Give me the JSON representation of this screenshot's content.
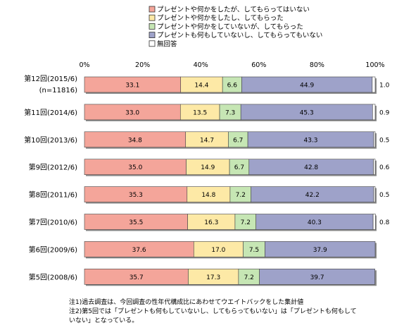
{
  "chart_data": {
    "type": "bar",
    "orientation": "horizontal",
    "stacked": true,
    "percent": true,
    "xlim": [
      0,
      100
    ],
    "x_ticks": [
      "0%",
      "20%",
      "40%",
      "60%",
      "80%",
      "100%"
    ],
    "categories": [
      {
        "line1": "第12回(2015/6)",
        "line2": "(n=11816)"
      },
      {
        "line1": "第11回(2014/6)",
        "line2": ""
      },
      {
        "line1": "第10回(2013/6)",
        "line2": ""
      },
      {
        "line1": "第9回(2012/6)",
        "line2": ""
      },
      {
        "line1": "第8回(2011/6)",
        "line2": ""
      },
      {
        "line1": "第7回(2010/6)",
        "line2": ""
      },
      {
        "line1": "第6回(2009/6)",
        "line2": ""
      },
      {
        "line1": "第5回(2008/6)",
        "line2": ""
      }
    ],
    "legend_position": "top-right",
    "series": [
      {
        "name": "プレゼントや何かをしたが、してもらってはいない",
        "color": "#f4a59a",
        "values": [
          33.1,
          33.0,
          34.8,
          35.0,
          35.3,
          35.5,
          37.6,
          35.7
        ],
        "labels": [
          "33.1",
          "33.0",
          "34.8",
          "35.0",
          "35.3",
          "35.5",
          "37.6",
          "35.7"
        ]
      },
      {
        "name": "プレゼントや何かをしたし、してもらった",
        "color": "#fde9a6",
        "values": [
          14.4,
          13.5,
          14.7,
          14.9,
          14.8,
          16.3,
          17.0,
          17.3
        ],
        "labels": [
          "14.4",
          "13.5",
          "14.7",
          "14.9",
          "14.8",
          "16.3",
          "17.0",
          "17.3"
        ]
      },
      {
        "name": "プレゼントや何かをしていないが、してもらった",
        "color": "#c6e6b4",
        "values": [
          6.6,
          7.3,
          6.7,
          6.7,
          7.2,
          7.2,
          7.5,
          7.2
        ],
        "labels": [
          "6.6",
          "7.3",
          "6.7",
          "6.7",
          "7.2",
          "7.2",
          "7.5",
          "7.2"
        ]
      },
      {
        "name": "プレゼントも何もしていないし、してもらってもいない",
        "color": "#9ea2c9",
        "values": [
          44.9,
          45.3,
          43.3,
          42.8,
          42.2,
          40.3,
          37.9,
          39.7
        ],
        "labels": [
          "44.9",
          "45.3",
          "43.3",
          "42.8",
          "42.2",
          "40.3",
          "37.9",
          "39.7"
        ]
      },
      {
        "name": "無回答",
        "color": "#ffffff",
        "values": [
          1.0,
          0.9,
          0.5,
          0.6,
          0.5,
          0.8,
          0,
          0
        ],
        "labels": [
          "1.0",
          "0.9",
          "0.5",
          "0.6",
          "0.5",
          "0.8",
          "",
          ""
        ]
      }
    ]
  },
  "notes": {
    "note1": "注1)過去調査は、今回調査の性年代構成比にあわせてウエイトバックをした集計値",
    "note2_line1": "注2)第5回では「プレゼントも何もしていないし、してもらってもいない」は「プレゼントも何もして",
    "note2_line2": "いない」となっている。"
  }
}
